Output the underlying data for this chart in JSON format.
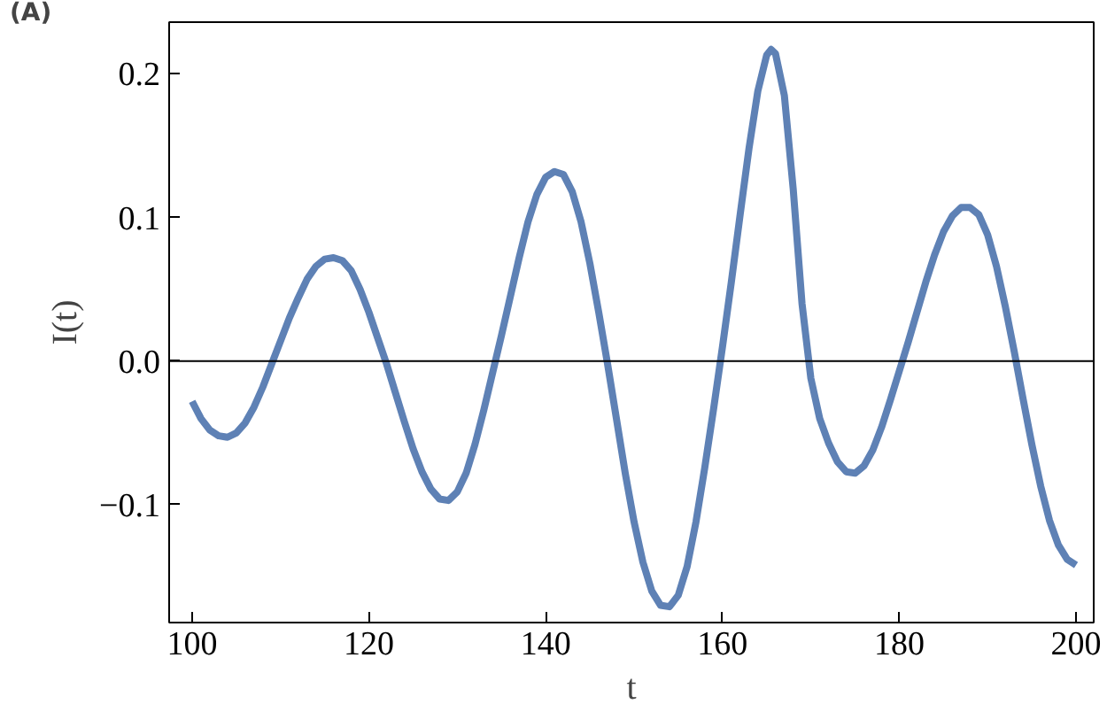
{
  "chart_data": {
    "type": "line",
    "xlabel": "t",
    "ylabel": "I(t)",
    "annotations": [
      "(A)"
    ],
    "xlim": [
      97.4,
      202
    ],
    "ylim": [
      -0.182,
      0.236
    ],
    "xticks": [
      100,
      120,
      140,
      160,
      180,
      200
    ],
    "yticks": [
      {
        "value": -0.1,
        "label": "−0.1"
      },
      {
        "value": 0,
        "label": "0.0"
      },
      0.1,
      0.2
    ],
    "grid": false,
    "marker": "none",
    "line_style": "solid",
    "ref_lines": [
      {
        "axis": "y",
        "value": 0,
        "label": null,
        "color": "#000000"
      }
    ],
    "series": [
      {
        "color": "#5e81b5",
        "x": [
          100,
          101,
          102,
          103,
          104,
          105,
          106,
          107,
          108,
          109,
          110,
          111,
          112,
          113,
          114,
          115,
          116,
          117,
          118,
          119,
          120,
          121,
          122,
          123,
          124,
          125,
          126,
          127,
          128,
          129,
          130,
          131,
          132,
          133,
          134,
          135,
          136,
          137,
          138,
          139,
          140,
          141,
          142,
          143,
          144,
          145,
          146,
          147,
          148,
          149,
          150,
          151,
          152,
          153,
          154,
          155,
          156,
          157,
          158,
          159,
          160,
          161,
          162,
          163,
          164,
          165,
          165.5,
          166,
          167,
          168,
          169,
          170,
          171,
          172,
          173,
          174,
          175,
          176,
          177,
          178,
          179,
          180,
          181,
          182,
          183,
          184,
          185,
          186,
          187,
          188,
          189,
          190,
          191,
          192,
          193,
          194,
          195,
          196,
          197,
          198,
          199,
          200
        ],
        "values": [
          -0.028,
          -0.04,
          -0.048,
          -0.052,
          -0.053,
          -0.05,
          -0.043,
          -0.032,
          -0.018,
          -0.002,
          0.014,
          0.03,
          0.044,
          0.057,
          0.066,
          0.071,
          0.072,
          0.07,
          0.063,
          0.05,
          0.034,
          0.016,
          -0.002,
          -0.022,
          -0.042,
          -0.061,
          -0.077,
          -0.089,
          -0.096,
          -0.097,
          -0.091,
          -0.078,
          -0.058,
          -0.034,
          -0.008,
          0.018,
          0.045,
          0.072,
          0.097,
          0.116,
          0.128,
          0.132,
          0.13,
          0.118,
          0.097,
          0.068,
          0.034,
          -0.002,
          -0.04,
          -0.078,
          -0.112,
          -0.14,
          -0.16,
          -0.17,
          -0.171,
          -0.163,
          -0.143,
          -0.112,
          -0.074,
          -0.033,
          0.01,
          0.055,
          0.102,
          0.148,
          0.188,
          0.213,
          0.217,
          0.214,
          0.185,
          0.12,
          0.04,
          -0.012,
          -0.04,
          -0.057,
          -0.07,
          -0.077,
          -0.078,
          -0.073,
          -0.062,
          -0.046,
          -0.027,
          -0.007,
          0.013,
          0.034,
          0.055,
          0.074,
          0.09,
          0.101,
          0.107,
          0.107,
          0.102,
          0.088,
          0.066,
          0.038,
          0.007,
          -0.026,
          -0.058,
          -0.087,
          -0.111,
          -0.128,
          -0.138,
          -0.142
        ]
      }
    ]
  }
}
